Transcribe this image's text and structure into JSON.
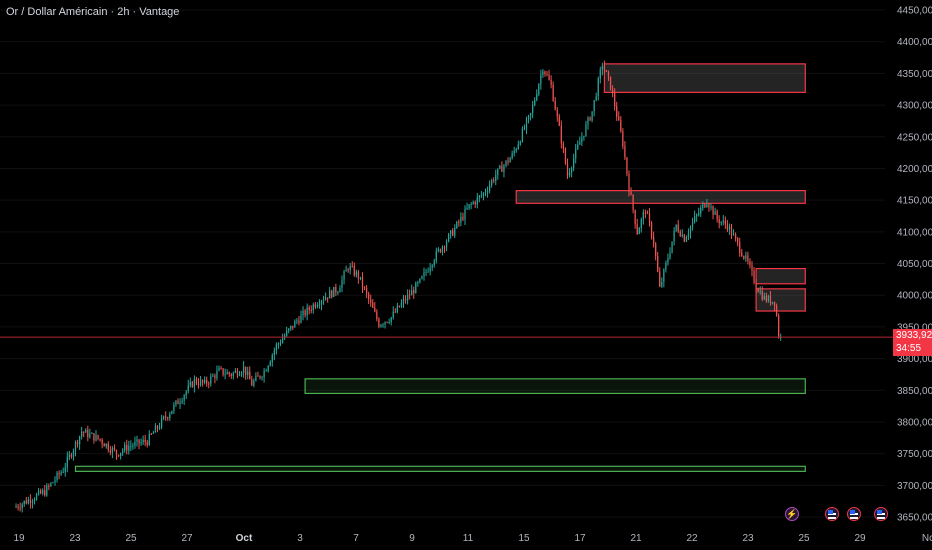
{
  "header": {
    "title": "Or / Dollar Américain · 2h · Vantage"
  },
  "price_label": {
    "value": "3933,92",
    "countdown": "34:55"
  },
  "y_ticks": [
    "4450,00",
    "4400,00",
    "4350,00",
    "4300,00",
    "4250,00",
    "4200,00",
    "4150,00",
    "4100,00",
    "4050,00",
    "4000,00",
    "3950,00",
    "3900,00",
    "3850,00",
    "3800,00",
    "3750,00",
    "3700,00",
    "3650,00"
  ],
  "x_ticks": [
    "19",
    "23",
    "25",
    "27",
    "Oct",
    "3",
    "7",
    "9",
    "11",
    "15",
    "17",
    "21",
    "22",
    "23",
    "25",
    "29",
    "Nc"
  ],
  "colors": {
    "up": "#26a69a",
    "down": "#ef5350",
    "supply": "#f23645",
    "demand": "#4caf50",
    "background": "#000000",
    "grid": "#111111"
  },
  "events": [
    {
      "icon": "lightning-icon"
    },
    {
      "icon": "us-flag-icon"
    },
    {
      "icon": "us-flag-icon"
    },
    {
      "icon": "us-flag-icon"
    }
  ],
  "chart_data": {
    "type": "candlestick",
    "symbol": "Or / Dollar Américain",
    "timeframe": "2h",
    "broker": "Vantage",
    "ylim": [
      3630,
      4460
    ],
    "last_price": 3933.92,
    "price_path": [
      [
        0,
        3665
      ],
      [
        1.5,
        3690
      ],
      [
        2.4,
        3725
      ],
      [
        3.3,
        3785
      ],
      [
        4.2,
        3772
      ],
      [
        5,
        3750
      ],
      [
        5.6,
        3762
      ],
      [
        6.5,
        3770
      ],
      [
        7.2,
        3800
      ],
      [
        8.2,
        3840
      ],
      [
        8.8,
        3865
      ],
      [
        9.3,
        3860
      ],
      [
        10,
        3880
      ],
      [
        10.6,
        3875
      ],
      [
        11.2,
        3885
      ],
      [
        11.6,
        3860
      ],
      [
        12.2,
        3880
      ],
      [
        12.8,
        3920
      ],
      [
        13.8,
        3960
      ],
      [
        14.8,
        3990
      ],
      [
        15.8,
        4010
      ],
      [
        16.3,
        4045
      ],
      [
        16.8,
        4030
      ],
      [
        17.2,
        4000
      ],
      [
        17.8,
        3955
      ],
      [
        18.4,
        3965
      ],
      [
        19,
        3990
      ],
      [
        19.8,
        4020
      ],
      [
        20.5,
        4060
      ],
      [
        21.4,
        4100
      ],
      [
        22.2,
        4140
      ],
      [
        22.9,
        4160
      ],
      [
        23.5,
        4190
      ],
      [
        24.3,
        4220
      ],
      [
        25.2,
        4285
      ],
      [
        25.8,
        4360
      ],
      [
        26.2,
        4330
      ],
      [
        26.7,
        4245
      ],
      [
        27,
        4190
      ],
      [
        27.4,
        4225
      ],
      [
        28.2,
        4290
      ],
      [
        28.7,
        4365
      ],
      [
        29.1,
        4330
      ],
      [
        29.7,
        4240
      ],
      [
        30,
        4170
      ],
      [
        30.4,
        4100
      ],
      [
        30.8,
        4135
      ],
      [
        31.2,
        4085
      ],
      [
        31.5,
        4010
      ],
      [
        31.9,
        4060
      ],
      [
        32.3,
        4110
      ],
      [
        32.7,
        4090
      ],
      [
        33.2,
        4120
      ],
      [
        33.8,
        4150
      ],
      [
        34.3,
        4120
      ],
      [
        34.8,
        4110
      ],
      [
        35.3,
        4080
      ],
      [
        35.8,
        4050
      ],
      [
        36.2,
        4015
      ],
      [
        36.6,
        3995
      ],
      [
        37.1,
        3990
      ],
      [
        37.3,
        3945
      ],
      [
        37.4,
        3933.92
      ]
    ],
    "zones": [
      {
        "kind": "supply",
        "top": 4365,
        "bottom": 4320,
        "from": 28.8,
        "to": 38.6
      },
      {
        "kind": "supply",
        "top": 4165,
        "bottom": 4145,
        "from": 24.5,
        "to": 38.6
      },
      {
        "kind": "supply",
        "top": 4042,
        "bottom": 4018,
        "from": 36.2,
        "to": 38.6
      },
      {
        "kind": "supply",
        "top": 4010,
        "bottom": 3975,
        "from": 36.2,
        "to": 38.6
      },
      {
        "kind": "demand",
        "top": 3868,
        "bottom": 3845,
        "from": 14.2,
        "to": 38.6
      },
      {
        "kind": "demand",
        "top": 3730,
        "bottom": 3722,
        "from": 3.0,
        "to": 38.6
      }
    ]
  }
}
